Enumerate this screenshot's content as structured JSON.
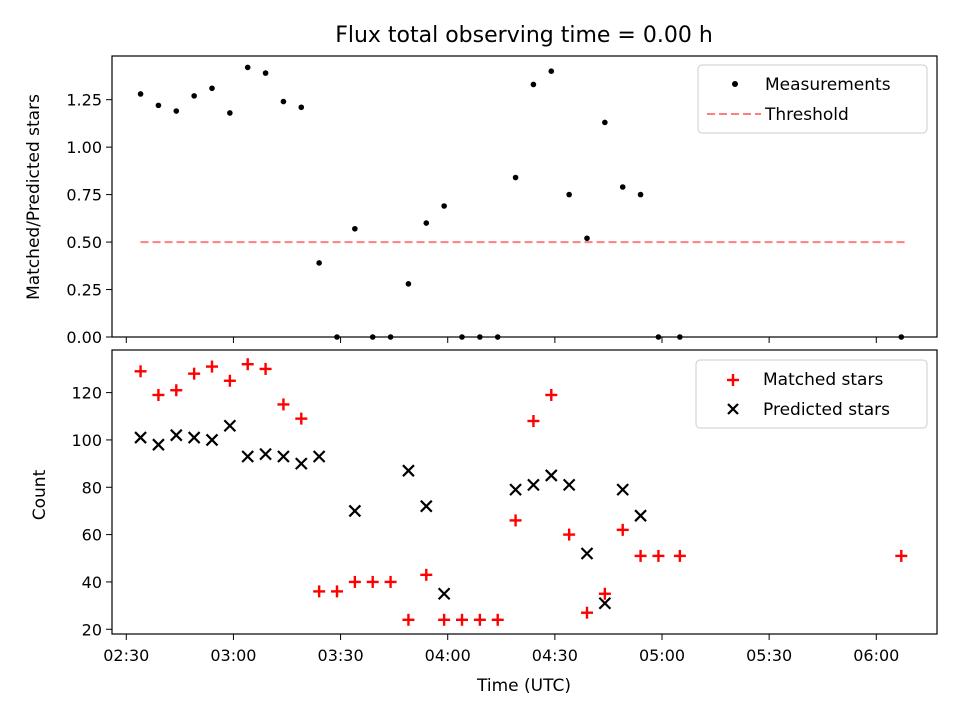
{
  "chart_data": [
    {
      "type": "scatter",
      "title": "Flux total observing time = 0.00 h",
      "xlabel": "",
      "ylabel": "Matched/Predicted stars",
      "ylim": [
        0,
        1.48
      ],
      "yticks": [
        "0.00",
        "0.25",
        "0.50",
        "0.75",
        "1.00",
        "1.25"
      ],
      "ytick_values": [
        0,
        0.25,
        0.5,
        0.75,
        1.0,
        1.25
      ],
      "legend_position": "top-right",
      "threshold": {
        "name": "Threshold",
        "value": 0.5,
        "x_start": "02:34",
        "x_end": "06:08",
        "color": "#ff7f7f"
      },
      "series": [
        {
          "name": "Measurements",
          "color": "#000000",
          "marker": "dot",
          "x": [
            "02:34",
            "02:39",
            "02:44",
            "02:49",
            "02:54",
            "02:59",
            "03:04",
            "03:09",
            "03:14",
            "03:19",
            "03:24",
            "03:29",
            "03:34",
            "03:39",
            "03:44",
            "03:49",
            "03:54",
            "03:59",
            "04:04",
            "04:09",
            "04:14",
            "04:19",
            "04:24",
            "04:29",
            "04:34",
            "04:39",
            "04:44",
            "04:49",
            "04:54",
            "04:59",
            "05:05",
            "06:07"
          ],
          "values": [
            1.28,
            1.22,
            1.19,
            1.27,
            1.31,
            1.18,
            1.42,
            1.39,
            1.24,
            1.21,
            0.39,
            0.0,
            0.57,
            0.0,
            0.0,
            0.28,
            0.6,
            0.69,
            0.0,
            0.0,
            0.0,
            0.84,
            1.33,
            1.4,
            0.75,
            0.52,
            1.13,
            0.79,
            0.75,
            0.0,
            0.0,
            0.0
          ]
        }
      ]
    },
    {
      "type": "scatter",
      "title": "",
      "xlabel": "Time (UTC)",
      "ylabel": "Count",
      "ylim": [
        18,
        138
      ],
      "yticks": [
        "20",
        "40",
        "60",
        "80",
        "100",
        "120"
      ],
      "ytick_values": [
        20,
        40,
        60,
        80,
        100,
        120
      ],
      "xlim": [
        "02:26",
        "06:17"
      ],
      "xticks": [
        "02:30",
        "03:00",
        "03:30",
        "04:00",
        "04:30",
        "05:00",
        "05:30",
        "06:00"
      ],
      "legend_position": "top-right",
      "series": [
        {
          "name": "Matched stars",
          "color": "#ff0000",
          "marker": "plus",
          "x": [
            "02:34",
            "02:39",
            "02:44",
            "02:49",
            "02:54",
            "02:59",
            "03:04",
            "03:09",
            "03:14",
            "03:19",
            "03:24",
            "03:29",
            "03:34",
            "03:39",
            "03:44",
            "03:49",
            "03:54",
            "03:59",
            "04:04",
            "04:09",
            "04:14",
            "04:19",
            "04:24",
            "04:29",
            "04:34",
            "04:39",
            "04:44",
            "04:49",
            "04:54",
            "04:59",
            "05:05",
            "06:07"
          ],
          "values": [
            129,
            119,
            121,
            128,
            131,
            125,
            132,
            130,
            115,
            109,
            36,
            36,
            40,
            40,
            40,
            24,
            43,
            24,
            24,
            24,
            24,
            66,
            108,
            119,
            60,
            27,
            35,
            62,
            51,
            51,
            51,
            51
          ]
        },
        {
          "name": "Predicted stars",
          "color": "#000000",
          "marker": "x",
          "x": [
            "02:34",
            "02:39",
            "02:44",
            "02:49",
            "02:54",
            "02:59",
            "03:04",
            "03:09",
            "03:14",
            "03:19",
            "03:24",
            "03:34",
            "03:49",
            "03:54",
            "03:59",
            "04:19",
            "04:24",
            "04:29",
            "04:34",
            "04:39",
            "04:44",
            "04:49",
            "04:54"
          ],
          "values": [
            101,
            98,
            102,
            101,
            100,
            106,
            93,
            94,
            93,
            90,
            93,
            70,
            87,
            72,
            35,
            79,
            81,
            85,
            81,
            52,
            31,
            79,
            68
          ]
        }
      ]
    }
  ]
}
